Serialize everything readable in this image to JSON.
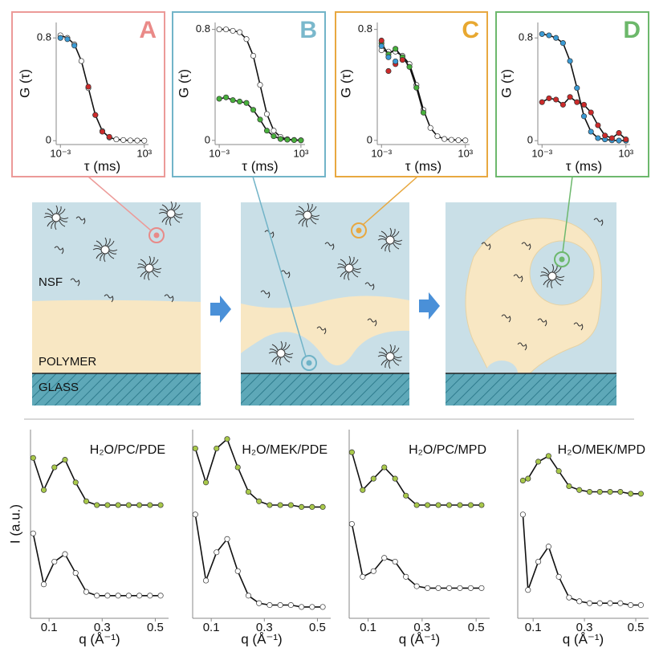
{
  "chart_data": [
    {
      "type": "line",
      "title": "A",
      "title_color": "#ea8a88",
      "frame_color": "#ec9a98",
      "x_label": "τ (ms)",
      "y_label": "G (τ)",
      "xscale": "log",
      "xlim": [
        0.0005,
        2000
      ],
      "xticks": [
        {
          "value": 0.001,
          "label": "10⁻³"
        },
        {
          "value": 1000,
          "label": "10³"
        }
      ],
      "ylim": [
        -0.03,
        0.92
      ],
      "yticks": [
        0,
        0.8
      ],
      "fit_color": "#111111",
      "x": [
        0.001,
        0.00316,
        0.01,
        0.0316,
        0.1,
        0.316,
        1,
        3.16,
        10,
        31.6,
        100,
        316,
        1000
      ],
      "series": [
        {
          "color": "#ffffff",
          "fit": true,
          "values": [
            0.82,
            0.8,
            0.75,
            0.62,
            0.41,
            0.2,
            0.075,
            0.025,
            0.01,
            0.005,
            0.002,
            0.001,
            0
          ]
        },
        {
          "color": "#3a9ad4",
          "fit": false,
          "values": [
            0.8,
            0.79,
            0.74,
            null,
            null,
            null,
            null,
            null,
            null,
            null,
            null,
            null,
            null
          ]
        },
        {
          "color": "#cc2a2a",
          "fit": false,
          "values": [
            null,
            null,
            null,
            null,
            0.42,
            0.2,
            0.07,
            0.03,
            null,
            null,
            null,
            null,
            null
          ]
        }
      ]
    },
    {
      "type": "line",
      "title": "B",
      "title_color": "#7ab8cc",
      "frame_color": "#72b4c8",
      "x_label": "τ (ms)",
      "y_label": "G (τ)",
      "xscale": "log",
      "xlim": [
        0.0005,
        2000
      ],
      "xticks": [
        {
          "value": 0.001,
          "label": "10⁻³"
        },
        {
          "value": 1000,
          "label": "10³"
        }
      ],
      "ylim": [
        -0.03,
        0.85
      ],
      "yticks": [
        0,
        0.8
      ],
      "fit_color": "#111111",
      "x": [
        0.001,
        0.00316,
        0.01,
        0.0316,
        0.1,
        0.316,
        1,
        3.16,
        10,
        31.6,
        100,
        316,
        1000
      ],
      "series": [
        {
          "color": "#ffffff",
          "fit": true,
          "values": [
            0.8,
            0.8,
            0.79,
            0.78,
            0.73,
            0.61,
            0.4,
            0.19,
            0.07,
            0.025,
            0.008,
            0.003,
            0.001
          ]
        },
        {
          "color": "#48b03c",
          "fit": true,
          "values": [
            0.3,
            0.31,
            0.29,
            0.28,
            0.27,
            0.22,
            0.15,
            0.07,
            0.03,
            0.01,
            0.005,
            0.002,
            0
          ]
        }
      ]
    },
    {
      "type": "line",
      "title": "C",
      "title_color": "#e8a830",
      "frame_color": "#e8a840",
      "x_label": "τ (ms)",
      "y_label": "G (τ)",
      "xscale": "log",
      "xlim": [
        0.0005,
        2000
      ],
      "xticks": [
        {
          "value": 0.001,
          "label": "10⁻³"
        },
        {
          "value": 1000,
          "label": "10³"
        }
      ],
      "ylim": [
        -0.03,
        0.85
      ],
      "yticks": [
        0,
        0.8
      ],
      "fit_color": "#111111",
      "x": [
        0.001,
        0.00316,
        0.01,
        0.0316,
        0.1,
        0.316,
        1,
        3.16,
        10,
        31.6,
        100,
        316,
        1000
      ],
      "series": [
        {
          "color": "#ffffff",
          "fit": true,
          "values": [
            0.65,
            0.64,
            0.64,
            0.61,
            0.55,
            0.4,
            0.22,
            0.09,
            0.03,
            0.01,
            0.004,
            0.001,
            0
          ]
        },
        {
          "color": "#48b03c",
          "fit": true,
          "values": [
            0.7,
            0.62,
            0.66,
            0.6,
            0.53,
            0.38,
            0.2,
            null,
            null,
            null,
            null,
            null,
            null
          ]
        },
        {
          "color": "#cc2a2a",
          "fit": false,
          "values": [
            0.72,
            0.5,
            0.55,
            0.58,
            null,
            null,
            null,
            null,
            null,
            null,
            null,
            null,
            null
          ]
        },
        {
          "color": "#3a9ad4",
          "fit": false,
          "values": [
            0.68,
            0.6,
            0.57,
            null,
            null,
            null,
            null,
            null,
            null,
            null,
            null,
            null,
            null
          ]
        }
      ]
    },
    {
      "type": "line",
      "title": "D",
      "title_color": "#6cb86a",
      "frame_color": "#6db86d",
      "x_label": "τ (ms)",
      "y_label": "G (τ)",
      "xscale": "log",
      "xlim": [
        0.0005,
        2000
      ],
      "xticks": [
        {
          "value": 0.001,
          "label": "10⁻³"
        },
        {
          "value": 1000,
          "label": "10³"
        }
      ],
      "ylim": [
        -0.03,
        0.92
      ],
      "yticks": [
        0,
        0.8
      ],
      "fit_color": "#111111",
      "x": [
        0.001,
        0.00316,
        0.01,
        0.0316,
        0.1,
        0.316,
        1,
        3.16,
        10,
        31.6,
        100,
        316,
        1000
      ],
      "series": [
        {
          "color": "#3a9ad4",
          "fit": true,
          "values": [
            0.83,
            0.82,
            0.8,
            0.76,
            0.62,
            0.41,
            0.19,
            0.07,
            0.02,
            0.01,
            0.003,
            0.001,
            0
          ]
        },
        {
          "color": "#cc2a2a",
          "fit": true,
          "values": [
            0.3,
            0.33,
            0.32,
            0.28,
            0.34,
            0.3,
            0.28,
            0.22,
            0.12,
            0.04,
            0.02,
            0.06,
            0.01
          ]
        }
      ]
    },
    {
      "type": "line",
      "title": "H₂O/PC/PDE",
      "x_label": "q (Å⁻¹)",
      "y_label": "I (a.u.)",
      "xscale": "linear",
      "xlim": [
        0.03,
        0.55
      ],
      "xticks": [
        0.1,
        0.3,
        0.5
      ],
      "ylim": [
        0,
        1
      ],
      "fit_color": "#111111",
      "x": [
        0.04,
        0.08,
        0.12,
        0.16,
        0.2,
        0.24,
        0.28,
        0.32,
        0.36,
        0.4,
        0.44,
        0.48,
        0.52
      ],
      "series": [
        {
          "color": "#a8c84a",
          "fit": true,
          "values": [
            0.85,
            0.68,
            0.8,
            0.84,
            0.72,
            0.62,
            0.6,
            0.6,
            0.6,
            0.6,
            0.6,
            0.6,
            0.6
          ]
        },
        {
          "color": "#ffffff",
          "fit": true,
          "values": [
            0.45,
            0.18,
            0.3,
            0.34,
            0.24,
            0.14,
            0.12,
            0.12,
            0.12,
            0.12,
            0.12,
            0.12,
            0.12
          ]
        }
      ]
    },
    {
      "type": "line",
      "title": "H₂O/MEK/PDE",
      "x_label": "q (Å⁻¹)",
      "xscale": "linear",
      "xlim": [
        0.03,
        0.55
      ],
      "xticks": [
        0.1,
        0.3,
        0.5
      ],
      "ylim": [
        0,
        1
      ],
      "fit_color": "#111111",
      "x": [
        0.04,
        0.08,
        0.12,
        0.16,
        0.2,
        0.24,
        0.28,
        0.32,
        0.36,
        0.4,
        0.44,
        0.48,
        0.52
      ],
      "series": [
        {
          "color": "#a8c84a",
          "fit": true,
          "values": [
            0.9,
            0.72,
            0.9,
            0.95,
            0.8,
            0.67,
            0.62,
            0.6,
            0.6,
            0.6,
            0.59,
            0.59,
            0.59
          ]
        },
        {
          "color": "#ffffff",
          "fit": true,
          "values": [
            0.55,
            0.2,
            0.35,
            0.42,
            0.25,
            0.12,
            0.08,
            0.07,
            0.07,
            0.07,
            0.06,
            0.06,
            0.06
          ]
        }
      ]
    },
    {
      "type": "line",
      "title": "H₂O/PC/MPD",
      "x_label": "q (Å⁻¹)",
      "xscale": "linear",
      "xlim": [
        0.03,
        0.55
      ],
      "xticks": [
        0.1,
        0.3,
        0.5
      ],
      "ylim": [
        0,
        1
      ],
      "fit_color": "#111111",
      "x": [
        0.04,
        0.08,
        0.12,
        0.16,
        0.2,
        0.24,
        0.28,
        0.32,
        0.36,
        0.4,
        0.44,
        0.48,
        0.52
      ],
      "series": [
        {
          "color": "#a8c84a",
          "fit": true,
          "values": [
            0.88,
            0.68,
            0.74,
            0.8,
            0.74,
            0.65,
            0.6,
            0.6,
            0.6,
            0.6,
            0.6,
            0.6,
            0.6
          ]
        },
        {
          "color": "#ffffff",
          "fit": true,
          "values": [
            0.5,
            0.22,
            0.25,
            0.32,
            0.3,
            0.22,
            0.17,
            0.16,
            0.16,
            0.16,
            0.16,
            0.16,
            0.16
          ]
        }
      ]
    },
    {
      "type": "line",
      "title": "H₂O/MEK/MPD",
      "x_label": "q (Å⁻¹)",
      "xscale": "linear",
      "xlim": [
        0.04,
        0.55
      ],
      "xticks": [
        0.1,
        0.3,
        0.5
      ],
      "ylim": [
        0,
        1
      ],
      "fit_color": "#111111",
      "x": [
        0.06,
        0.08,
        0.12,
        0.16,
        0.2,
        0.24,
        0.28,
        0.32,
        0.36,
        0.4,
        0.44,
        0.48,
        0.52
      ],
      "series": [
        {
          "color": "#a8c84a",
          "fit": true,
          "values": [
            0.73,
            0.74,
            0.83,
            0.86,
            0.78,
            0.7,
            0.68,
            0.67,
            0.67,
            0.67,
            0.67,
            0.66,
            0.66
          ]
        },
        {
          "color": "#ffffff",
          "fit": true,
          "values": [
            0.55,
            0.15,
            0.3,
            0.38,
            0.22,
            0.11,
            0.09,
            0.08,
            0.08,
            0.08,
            0.08,
            0.07,
            0.07
          ]
        }
      ]
    }
  ],
  "diagram": {
    "labels": {
      "nsf": "NSF",
      "polymer": "POLYMER",
      "glass": "GLASS"
    }
  }
}
